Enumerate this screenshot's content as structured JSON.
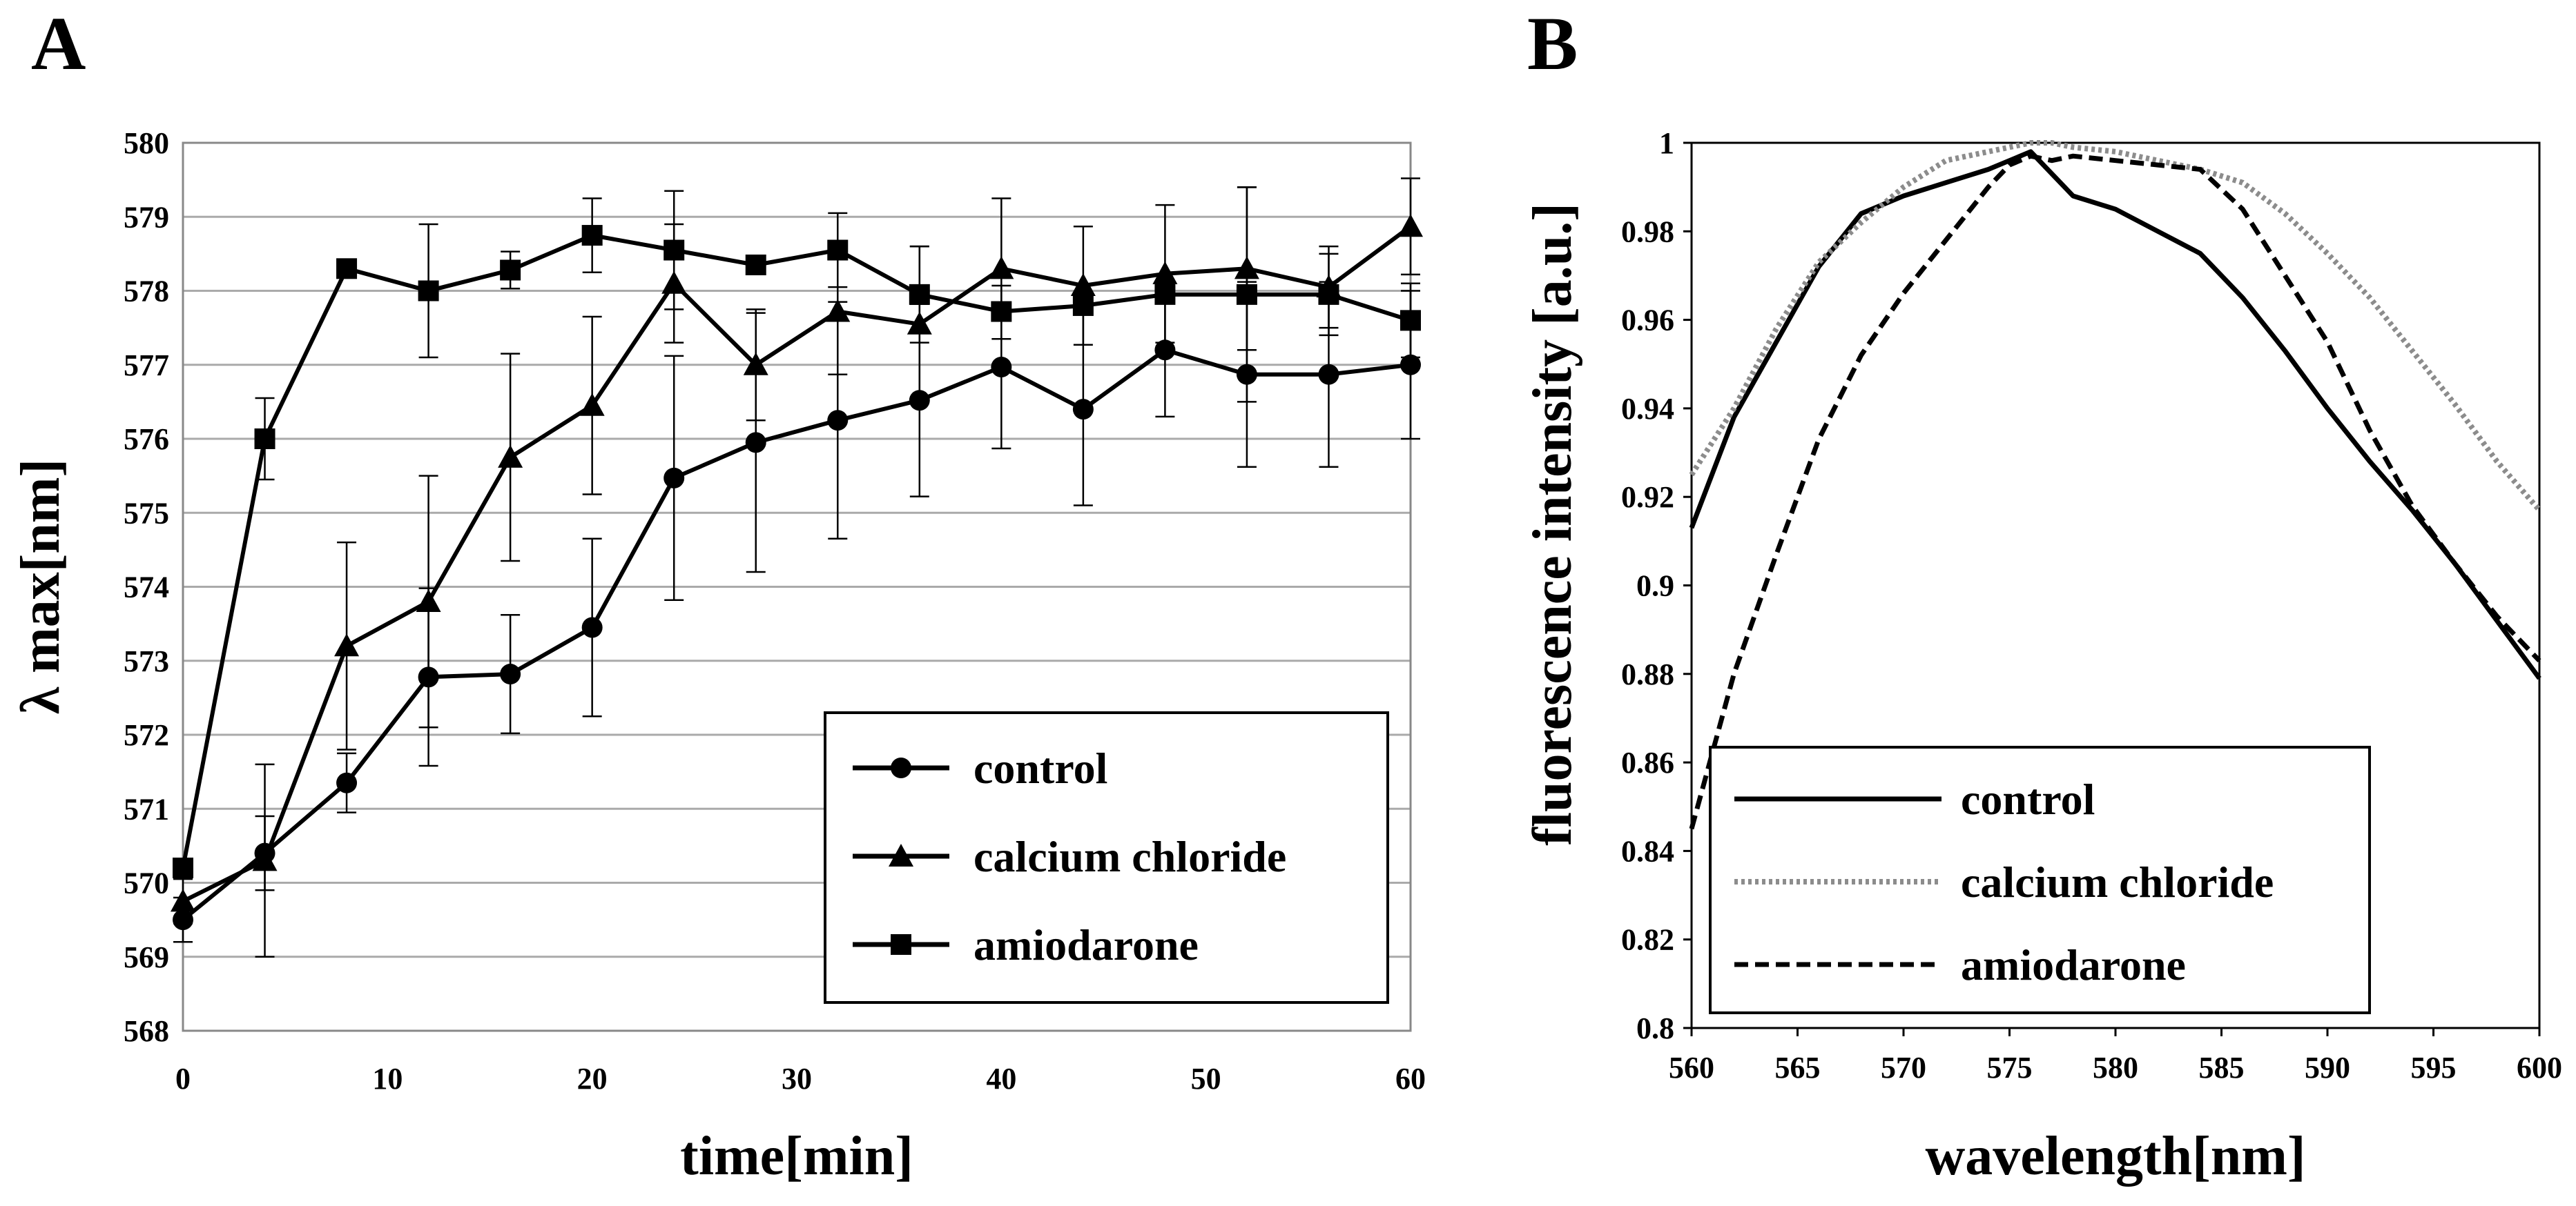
{
  "chart_data": [
    {
      "panel": "A",
      "type": "line",
      "xlabel": "time[min]",
      "ylabel": "λ max[nm]",
      "xlim": [
        0,
        60
      ],
      "ylim": [
        568,
        580
      ],
      "x_ticks": [
        0,
        10,
        20,
        30,
        40,
        50,
        60
      ],
      "y_ticks": [
        568,
        569,
        570,
        571,
        572,
        573,
        574,
        575,
        576,
        577,
        578,
        579,
        580
      ],
      "grid": "horizontal",
      "legend_position": "bottom-right",
      "x": [
        0,
        4,
        8,
        12,
        16,
        20,
        24,
        28,
        32,
        36,
        40,
        44,
        48,
        52,
        56,
        60
      ],
      "series": [
        {
          "name": "control",
          "marker": "circle",
          "values": [
            569.5,
            570.4,
            571.35,
            572.78,
            572.82,
            573.45,
            575.47,
            575.95,
            576.25,
            576.52,
            576.97,
            576.4,
            577.2,
            576.87,
            576.87,
            577.0
          ],
          "errors": [
            0.3,
            0.5,
            0.4,
            1.2,
            0.8,
            1.2,
            1.65,
            1.75,
            1.6,
            1.3,
            1.1,
            1.3,
            0.9,
            1.25,
            1.25,
            1.0
          ]
        },
        {
          "name": "calcium chloride",
          "marker": "triangle",
          "values": [
            569.75,
            570.3,
            573.2,
            573.8,
            575.75,
            576.45,
            578.1,
            577.0,
            577.72,
            577.55,
            578.3,
            578.07,
            578.23,
            578.3,
            578.05,
            578.87
          ],
          "errors": [
            0.3,
            1.3,
            1.4,
            1.7,
            1.4,
            1.2,
            0.8,
            0.75,
            0.85,
            1.05,
            0.95,
            0.8,
            0.93,
            1.1,
            0.55,
            0.65
          ]
        },
        {
          "name": "amiodarone",
          "marker": "square",
          "values": [
            570.2,
            576.0,
            578.3,
            578.0,
            578.28,
            578.75,
            578.55,
            578.35,
            578.55,
            577.95,
            577.72,
            577.8,
            577.95,
            577.95,
            577.95,
            577.6
          ],
          "errors": [
            0.05,
            0.55,
            0.1,
            0.9,
            0.25,
            0.5,
            0.8,
            0.05,
            0.5,
            0.65,
            0.1,
            0.05,
            0.1,
            1.45,
            0.55,
            0.5
          ]
        }
      ]
    },
    {
      "panel": "B",
      "type": "line",
      "xlabel": "wavelength[nm]",
      "ylabel": "fluorescence intensity [a.u.]",
      "xlim": [
        560,
        600
      ],
      "ylim": [
        0.8,
        1.0
      ],
      "x_ticks": [
        560,
        565,
        570,
        575,
        580,
        585,
        590,
        595,
        600
      ],
      "y_ticks": [
        0.8,
        0.82,
        0.84,
        0.86,
        0.88,
        0.9,
        0.92,
        0.94,
        0.96,
        0.98,
        1
      ],
      "grid": "none",
      "legend_position": "bottom-left",
      "x": [
        560,
        562,
        564,
        566,
        568,
        570,
        572,
        574,
        575,
        576,
        577,
        578,
        580,
        582,
        584,
        586,
        588,
        590,
        592,
        594,
        596,
        598,
        600
      ],
      "series": [
        {
          "name": "control",
          "style": "solid",
          "values": [
            0.913,
            0.938,
            0.955,
            0.972,
            0.984,
            0.988,
            0.991,
            0.994,
            0.996,
            0.998,
            0.993,
            0.988,
            0.985,
            0.98,
            0.975,
            0.965,
            0.953,
            0.94,
            0.928,
            0.917,
            0.905,
            0.892,
            0.879
          ]
        },
        {
          "name": "calcium chloride",
          "style": "dotted",
          "values": [
            0.925,
            0.94,
            0.958,
            0.973,
            0.982,
            0.99,
            0.996,
            0.998,
            0.999,
            1.0,
            1.0,
            0.999,
            0.998,
            0.996,
            0.994,
            0.991,
            0.984,
            0.975,
            0.965,
            0.953,
            0.941,
            0.928,
            0.917
          ]
        },
        {
          "name": "amiodarone",
          "style": "dashed",
          "values": [
            0.845,
            0.88,
            0.907,
            0.933,
            0.952,
            0.966,
            0.978,
            0.99,
            0.995,
            0.997,
            0.996,
            0.997,
            0.996,
            0.995,
            0.994,
            0.985,
            0.97,
            0.955,
            0.935,
            0.918,
            0.905,
            0.893,
            0.883
          ]
        }
      ]
    }
  ]
}
